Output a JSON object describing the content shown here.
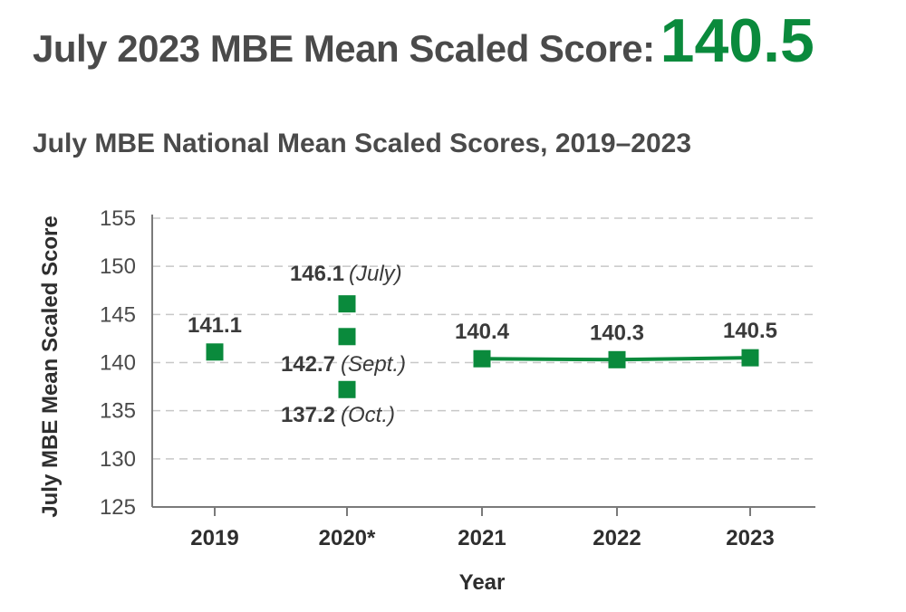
{
  "headline": {
    "text": "July 2023 MBE Mean Scaled Score:",
    "value": "140.5"
  },
  "colors": {
    "accent": "#0a8a3c",
    "text": "#4a4a4a",
    "grid": "#c8c8c8",
    "axis": "#7a7a7a"
  },
  "chart_data": {
    "type": "line",
    "title": "July MBE National Mean Scaled Scores, 2019–2023",
    "xlabel": "Year",
    "ylabel": "July MBE Mean Scaled Score",
    "categories": [
      "2019",
      "2020*",
      "2021",
      "2022",
      "2023"
    ],
    "ylim": [
      125,
      155
    ],
    "yticks": [
      125,
      130,
      135,
      140,
      145,
      150,
      155
    ],
    "grid": true,
    "grid_style": "dashed",
    "points": [
      {
        "x": "2019",
        "y": 141.1,
        "label": "141.1",
        "note": ""
      },
      {
        "x": "2020*",
        "y": 146.1,
        "label": "146.1",
        "note": "(July)"
      },
      {
        "x": "2020*",
        "y": 142.7,
        "label": "142.7",
        "note": "(Sept.)"
      },
      {
        "x": "2020*",
        "y": 137.2,
        "label": "137.2",
        "note": "(Oct.)"
      },
      {
        "x": "2021",
        "y": 140.4,
        "label": "140.4",
        "note": ""
      },
      {
        "x": "2022",
        "y": 140.3,
        "label": "140.3",
        "note": ""
      },
      {
        "x": "2023",
        "y": 140.5,
        "label": "140.5",
        "note": ""
      }
    ],
    "connected_line": [
      "2021",
      "2022",
      "2023"
    ]
  }
}
